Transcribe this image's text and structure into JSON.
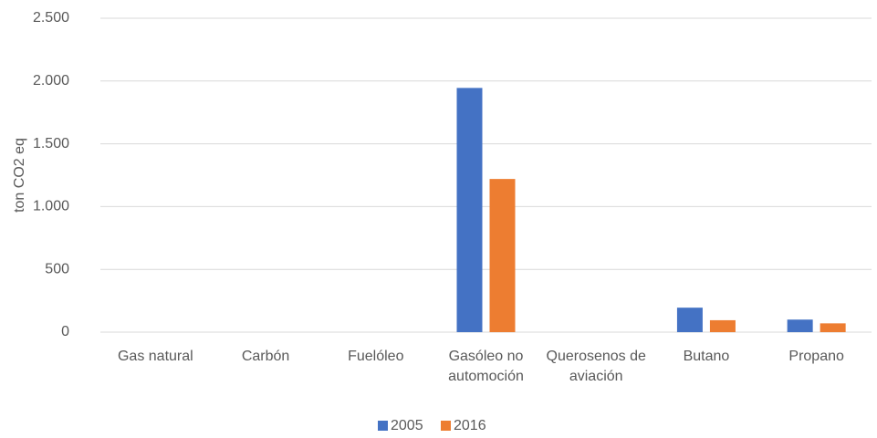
{
  "chart_data": {
    "type": "bar",
    "y_label": "ton CO2 eq",
    "categories": [
      "Gas natural",
      "Carbón",
      "Fuelóleo",
      "Gasóleo no automoción",
      "Querosenos de aviación",
      "Butano",
      "Propano"
    ],
    "series": [
      {
        "name": "2005",
        "color": "#4472c4",
        "values": [
          0,
          0,
          0,
          1945,
          0,
          195,
          100
        ]
      },
      {
        "name": "2016",
        "color": "#ed7d31",
        "values": [
          0,
          0,
          0,
          1220,
          0,
          95,
          70
        ]
      }
    ],
    "ylim": [
      0,
      2500
    ],
    "yticks": [
      0,
      500,
      {
        "value": 1000,
        "label": "1.000"
      },
      {
        "value": 1500,
        "label": "1.500"
      },
      {
        "value": 2000,
        "label": "2.000"
      },
      {
        "value": 2500,
        "label": "2.500"
      }
    ],
    "grid": true,
    "legend": "bottom"
  }
}
